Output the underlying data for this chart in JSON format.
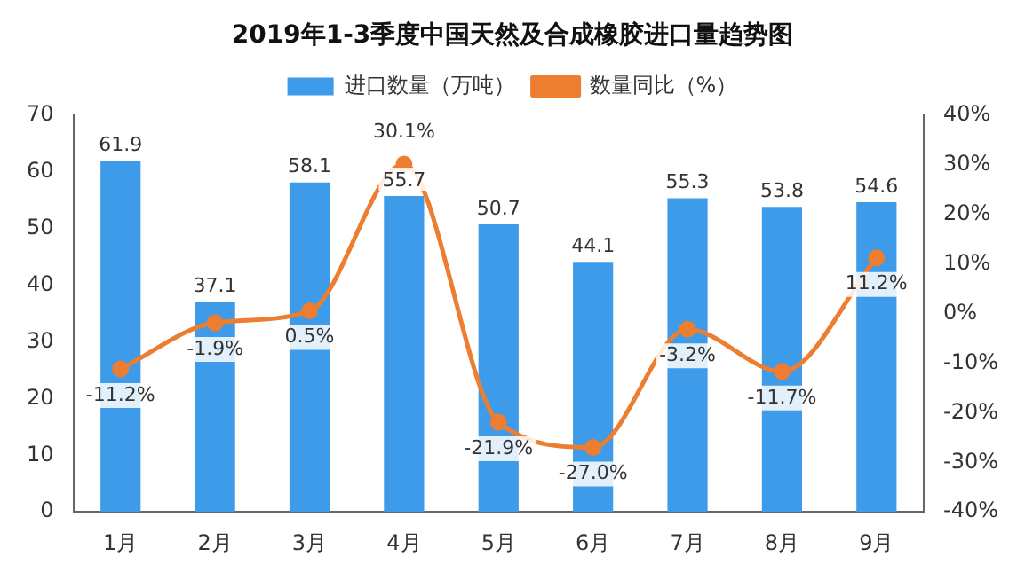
{
  "chart_data": {
    "type": "bar",
    "title": "2019年1-3季度中国天然及合成橡胶进口量趋势图",
    "categories": [
      "1月",
      "2月",
      "3月",
      "4月",
      "5月",
      "6月",
      "7月",
      "8月",
      "9月"
    ],
    "series": [
      {
        "name": "进口数量（万吨）",
        "color": "#3d9be9",
        "values": [
          61.9,
          37.1,
          58.1,
          55.7,
          50.7,
          44.1,
          55.3,
          53.8,
          54.6
        ],
        "value_labels": [
          "61.9",
          "37.1",
          "58.1",
          "55.7",
          "50.7",
          "44.1",
          "55.3",
          "53.8",
          "54.6"
        ]
      },
      {
        "name": "数量同比（%）",
        "type": "line",
        "axis": "y2",
        "color": "#ed7d31",
        "marker": "circle",
        "values": [
          -11.2,
          -1.9,
          0.5,
          30.1,
          -21.9,
          -27.0,
          -3.2,
          -11.7,
          11.2
        ],
        "value_labels": [
          "-11.2%",
          "-1.9%",
          "0.5%",
          "30.1%",
          "-21.9%",
          "-27.0%",
          "-3.2%",
          "-11.7%",
          "11.2%"
        ]
      }
    ],
    "ylim": [
      0,
      70
    ],
    "yticks": [
      0,
      10,
      20,
      30,
      40,
      50,
      60,
      70
    ],
    "y2lim": [
      -40,
      40
    ],
    "y2ticks": [
      {
        "value": -40,
        "label": "-40%"
      },
      {
        "value": -30,
        "label": "-30%"
      },
      {
        "value": -20,
        "label": "-20%"
      },
      {
        "value": -10,
        "label": "-10%"
      },
      {
        "value": 0,
        "label": "0%"
      },
      {
        "value": 10,
        "label": "10%"
      },
      {
        "value": 20,
        "label": "20%"
      },
      {
        "value": 30,
        "label": "30%"
      },
      {
        "value": 40,
        "label": "40%"
      }
    ],
    "grid": false,
    "legend": "top"
  }
}
